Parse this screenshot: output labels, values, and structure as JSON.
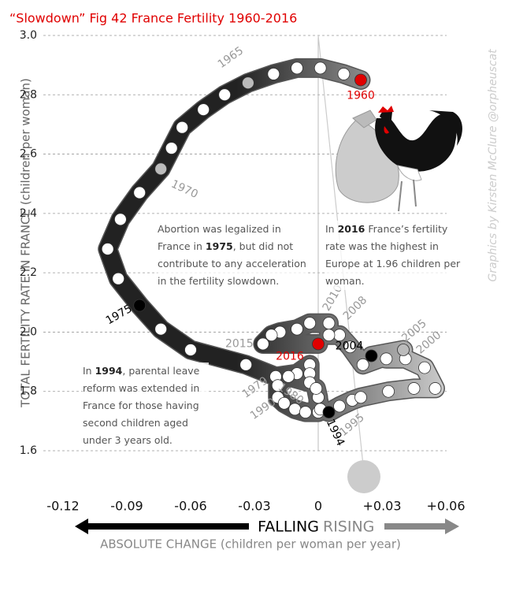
{
  "chart_data": {
    "type": "scatter",
    "title": "“Slowdown” Fig 42 France Fertility 1960-2016",
    "ylabel": "TOTAL FERTILITY RATE IN FRANCE (children per woman)",
    "xlabel": "ABSOLUTE CHANGE (children per woman per year)",
    "falling_label": "FALLING",
    "rising_label": "RISING",
    "credit": "Graphics by Kirsten McClure @orpheuscat",
    "annotations": [
      {
        "text": "Abortion was legalized in France in 1975, but did not contribute to any acceleration in the fertility slowdown.",
        "bold": "1975"
      },
      {
        "text": "In 2016 France’s fertility rate was the highest in Europe at 1.96 children per woman.",
        "bold": "2016"
      },
      {
        "text": "In 1994, parental leave reform was extended in France for those having second children aged under 3 years old.",
        "bold": "1994"
      }
    ],
    "xlim": [
      -0.12,
      0.06
    ],
    "xticks": [
      -0.12,
      -0.09,
      -0.06,
      -0.03,
      0,
      {
        "value": 0.03,
        "label": "+0.03"
      },
      {
        "value": 0.06,
        "label": "+0.06"
      }
    ],
    "ylim": [
      1.6,
      3.0
    ],
    "yticks": [
      1.6,
      1.8,
      {
        "value": 2,
        "label": "2.0"
      },
      2.2,
      2.4,
      2.6,
      2.8,
      {
        "value": 3,
        "label": "3.0"
      }
    ],
    "grid": true,
    "x": [
      0.02,
      0.012,
      0.001,
      -0.01,
      -0.021,
      -0.033,
      -0.044,
      -0.054,
      -0.064,
      -0.069,
      -0.074,
      -0.084,
      -0.093,
      -0.099,
      -0.094,
      -0.084,
      -0.074,
      -0.06,
      -0.034,
      -0.02,
      -0.01,
      -0.004,
      -0.004,
      -0.004,
      -0.014,
      -0.019,
      -0.019,
      -0.016,
      -0.011,
      -0.006,
      0.0,
      0.0,
      -0.001,
      0.001,
      0.005,
      0.01,
      0.016,
      0.02,
      0.033,
      0.045,
      0.055,
      0.05,
      0.041,
      0.032,
      0.025,
      0.04,
      0.021,
      0.015,
      0.01,
      0.005,
      0.005,
      -0.004,
      -0.01,
      -0.018,
      -0.022,
      -0.026,
      0.0
    ],
    "y": [
      2.85,
      2.87,
      2.89,
      2.89,
      2.87,
      2.84,
      2.8,
      2.75,
      2.69,
      2.62,
      2.55,
      2.47,
      2.38,
      2.28,
      2.18,
      2.09,
      2.01,
      1.94,
      1.89,
      1.85,
      1.86,
      1.89,
      1.86,
      1.83,
      1.85,
      1.82,
      1.78,
      1.76,
      1.74,
      1.73,
      1.73,
      1.78,
      1.81,
      1.74,
      1.73,
      1.75,
      1.77,
      1.78,
      1.8,
      1.81,
      1.81,
      1.88,
      1.91,
      1.91,
      1.92,
      1.94,
      1.89,
      1.95,
      1.99,
      1.99,
      2.03,
      2.03,
      2.01,
      2.0,
      1.99,
      1.96,
      1.96
    ],
    "point_labels": [
      "1960",
      null,
      null,
      null,
      null,
      "1965",
      null,
      null,
      null,
      null,
      "1970",
      null,
      null,
      null,
      null,
      "1975",
      null,
      null,
      null,
      "1979",
      "1980",
      null,
      null,
      null,
      null,
      null,
      null,
      null,
      null,
      null,
      "1990",
      null,
      null,
      null,
      "1994",
      "1995",
      null,
      null,
      null,
      null,
      "2000",
      null,
      null,
      null,
      "2004",
      "2005",
      null,
      null,
      "2008",
      null,
      "2010",
      null,
      null,
      null,
      null,
      "2015",
      "2016"
    ],
    "point_colors": [
      "#e00000",
      "#ffffff",
      "#ffffff",
      "#ffffff",
      "#ffffff",
      "#bbbbbb",
      "#ffffff",
      "#ffffff",
      "#ffffff",
      "#ffffff",
      "#bbbbbb",
      "#ffffff",
      "#ffffff",
      "#ffffff",
      "#ffffff",
      "#000000",
      "#ffffff",
      "#ffffff",
      "#ffffff",
      "#ffffff",
      "#ffffff",
      "#ffffff",
      "#ffffff",
      "#ffffff",
      "#ffffff",
      "#ffffff",
      "#ffffff",
      "#ffffff",
      "#ffffff",
      "#ffffff",
      "#ffffff",
      "#ffffff",
      "#ffffff",
      "#ffffff",
      "#000000",
      "#ffffff",
      "#ffffff",
      "#ffffff",
      "#ffffff",
      "#ffffff",
      "#ffffff",
      "#ffffff",
      "#ffffff",
      "#ffffff",
      "#000000",
      "#bbbbbb",
      "#ffffff",
      "#ffffff",
      "#ffffff",
      "#ffffff",
      "#ffffff",
      "#ffffff",
      "#ffffff",
      "#ffffff",
      "#ffffff",
      "#ffffff",
      "#e00000"
    ]
  }
}
